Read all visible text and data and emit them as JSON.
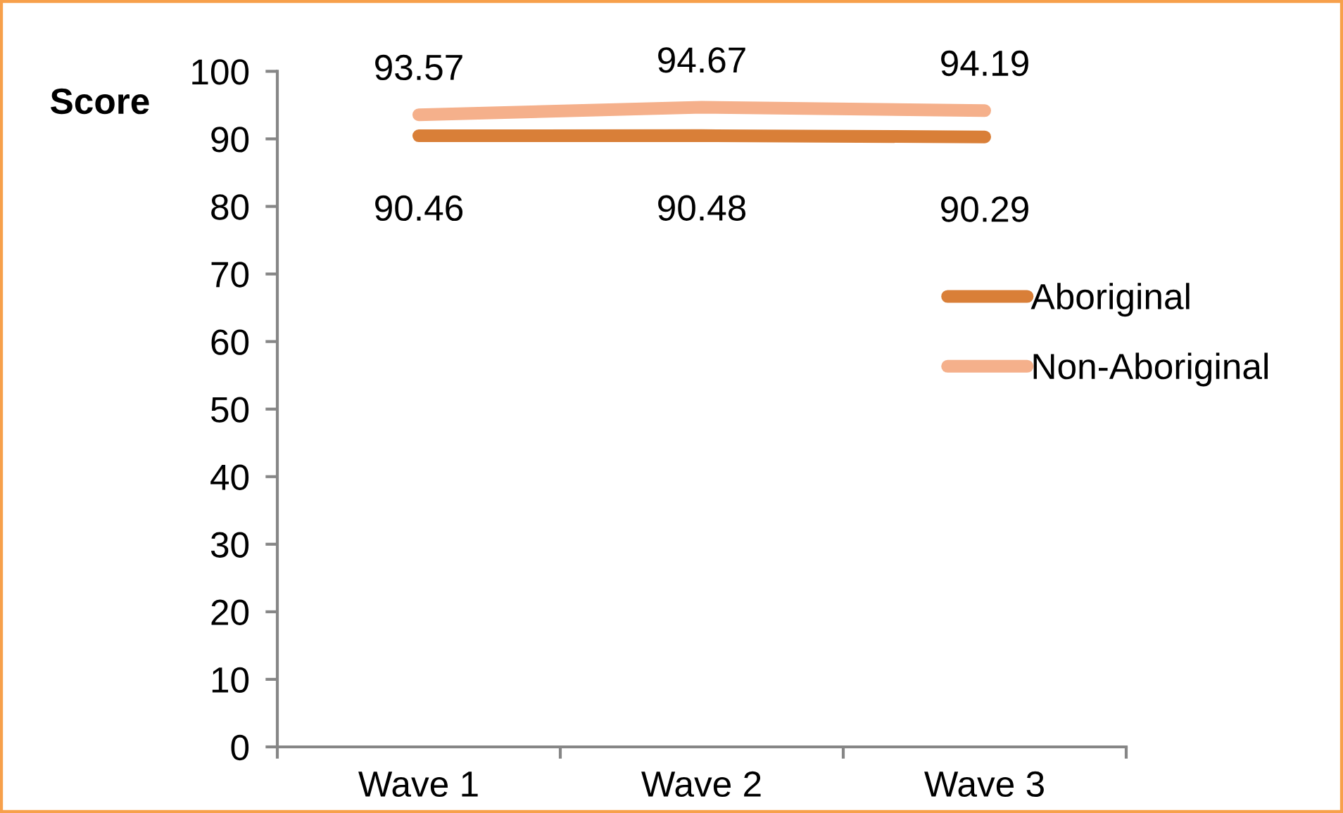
{
  "chart_data": {
    "type": "line",
    "ylabel": "Score",
    "categories": [
      "Wave 1",
      "Wave 2",
      "Wave 3"
    ],
    "series": [
      {
        "name": "Aboriginal",
        "color": "#d97f38",
        "values": [
          90.46,
          90.48,
          90.29
        ]
      },
      {
        "name": "Non-Aboriginal",
        "color": "#f5b08b",
        "values": [
          93.57,
          94.67,
          94.19
        ]
      }
    ],
    "ylim": [
      0,
      100
    ],
    "yticks": [
      0,
      10,
      20,
      30,
      40,
      50,
      60,
      70,
      80,
      90,
      100
    ],
    "legend": "right",
    "data_labels": true,
    "line_style": "solid"
  }
}
